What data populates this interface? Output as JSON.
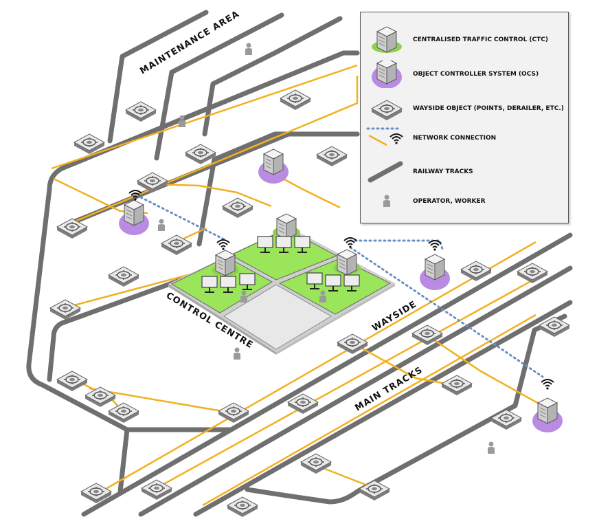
{
  "areas": {
    "maintenance": "MAINTENANCE AREA",
    "control_centre": "CONTROL CENTRE",
    "wayside": "WAYSIDE",
    "main_tracks": "MAIN TRACKS"
  },
  "legend": {
    "ctc": "CENTRALISED TRAFFIC CONTROL (CTC)",
    "ocs": "OBJECT CONTROLLER SYSTEM (OCS)",
    "wayside_object": "WAYSIDE OBJECT (POINTS, DERAILER, ETC.)",
    "network": "NETWORK CONNECTION",
    "tracks": "RAILWAY TRACKS",
    "operator": "OPERATOR, WORKER"
  },
  "colors": {
    "track": "#6f6f6f",
    "network": "#f2b01e",
    "wireless": "#6a8fc7",
    "ctc_base": "#8fd14f",
    "ocs_base": "#b98be3",
    "zone_green": "#9be55a",
    "zone_grey": "#e8e8e8",
    "server": "#dcdcdc"
  },
  "icons": [
    "server-icon",
    "wayside-object-icon",
    "wifi-icon",
    "operator-icon",
    "monitor-icon"
  ]
}
